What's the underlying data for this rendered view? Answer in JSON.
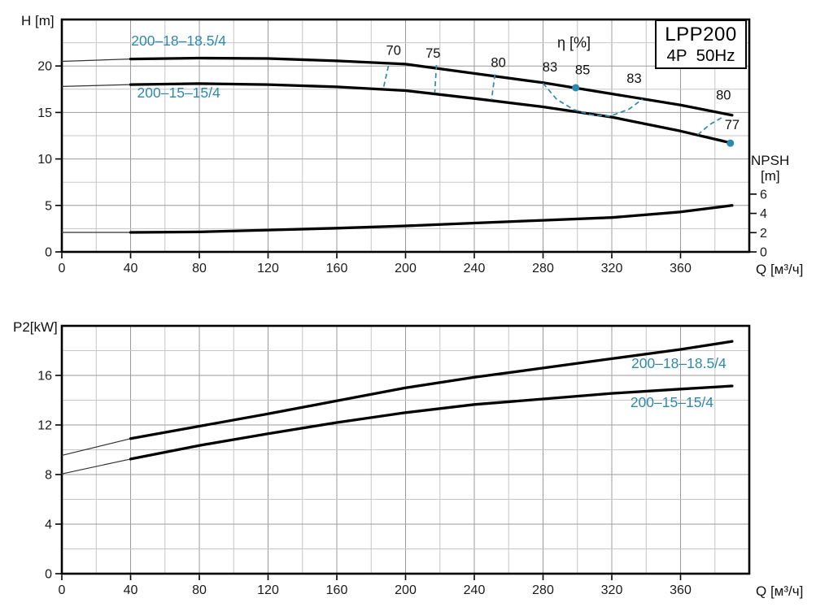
{
  "title_box": {
    "model": "LPP200",
    "spec": "4P  50Hz"
  },
  "colors": {
    "accent": "#2e8aad",
    "curve": "#000000",
    "curve_thin": "#333333",
    "grid_minor": "#c6c6c6",
    "grid_major": "#9b9b9b",
    "text": "#1a1a1a"
  },
  "chart_data": [
    {
      "type": "line",
      "id": "head-npsh-chart",
      "xlabel": "Q [м³/ч]",
      "ylabel": "H [m]",
      "y2label_lines": [
        "NPSH",
        "[m]"
      ],
      "xlim": [
        0,
        400
      ],
      "ylim": [
        0,
        25
      ],
      "x_ticks": [
        0,
        40,
        80,
        120,
        160,
        200,
        240,
        280,
        320,
        360
      ],
      "y_ticks": [
        0,
        5,
        10,
        15,
        20
      ],
      "y2_ticks": [
        0,
        2,
        4,
        6
      ],
      "grid": {
        "minor_x": 20,
        "minor_y": 2.5,
        "major_x": 40,
        "major_y": 5
      },
      "series": [
        {
          "name": "200–18–18.5/4",
          "label_pos": [
            68,
            22.2
          ],
          "thin_points": [
            [
              0,
              20.5
            ],
            [
              40,
              20.75
            ]
          ],
          "points": [
            [
              40,
              20.75
            ],
            [
              80,
              20.85
            ],
            [
              120,
              20.8
            ],
            [
              160,
              20.55
            ],
            [
              200,
              20.2
            ],
            [
              240,
              19.2
            ],
            [
              280,
              18.2
            ],
            [
              320,
              17.0
            ],
            [
              360,
              15.8
            ],
            [
              390,
              14.7
            ]
          ]
        },
        {
          "name": "200–15–15/4",
          "label_pos": [
            68,
            16.6
          ],
          "thin_points": [
            [
              0,
              17.8
            ],
            [
              40,
              18.0
            ]
          ],
          "points": [
            [
              40,
              18.0
            ],
            [
              80,
              18.1
            ],
            [
              120,
              18.0
            ],
            [
              160,
              17.75
            ],
            [
              200,
              17.35
            ],
            [
              240,
              16.5
            ],
            [
              280,
              15.6
            ],
            [
              320,
              14.5
            ],
            [
              360,
              13.0
            ],
            [
              390,
              11.7
            ]
          ]
        },
        {
          "name": "NPSH",
          "thin_points": [
            [
              0,
              2.1
            ],
            [
              40,
              2.1
            ]
          ],
          "points": [
            [
              40,
              2.1
            ],
            [
              80,
              2.15
            ],
            [
              120,
              2.35
            ],
            [
              160,
              2.55
            ],
            [
              200,
              2.8
            ],
            [
              240,
              3.1
            ],
            [
              280,
              3.4
            ],
            [
              320,
              3.7
            ],
            [
              360,
              4.3
            ],
            [
              390,
              5.0
            ]
          ]
        }
      ],
      "efficiency": {
        "title": "η [%]",
        "title_pos": [
          298,
          22.0
        ],
        "contours": [
          {
            "label": "70",
            "label_pos": [
              193,
              21.2
            ],
            "points": [
              [
                190,
                20.0
              ],
              [
                187,
                17.5
              ]
            ]
          },
          {
            "label": "75",
            "label_pos": [
              216,
              20.9
            ],
            "points": [
              [
                218,
                20.1
              ],
              [
                217,
                17.1
              ]
            ]
          },
          {
            "label": "80",
            "label_pos": [
              254,
              19.9
            ],
            "points": [
              [
                252,
                19.1
              ],
              [
                250,
                16.35
              ]
            ]
          },
          {
            "label": "83",
            "label_pos": [
              284,
              19.4
            ],
            "points": [
              [
                280,
                18.15
              ],
              [
                288,
                16.4
              ],
              [
                298,
                15.3
              ],
              [
                308,
                14.75
              ],
              [
                319,
                14.6
              ],
              [
                330,
                15.35
              ],
              [
                338,
                16.45
              ]
            ]
          },
          {
            "label": "85",
            "label_pos": [
              303,
              19.1
            ],
            "points": []
          },
          {
            "label": "83",
            "label_pos": [
              333,
              18.2
            ],
            "points": []
          },
          {
            "label": "80",
            "label_pos": [
              385,
              16.4
            ],
            "points": [
              [
                370,
                12.6
              ],
              [
                377,
                13.7
              ],
              [
                385,
                14.55
              ]
            ]
          },
          {
            "label": "77",
            "label_pos": [
              390,
              13.2
            ],
            "points": []
          }
        ],
        "best_efficiency_dots": [
          [
            299,
            17.66
          ],
          [
            389,
            11.7
          ]
        ]
      }
    },
    {
      "type": "line",
      "id": "power-chart",
      "xlabel": "Q [м³/ч]",
      "ylabel": "P2[kW]",
      "xlim": [
        0,
        400
      ],
      "ylim": [
        0,
        20
      ],
      "x_ticks": [
        0,
        40,
        80,
        120,
        160,
        200,
        240,
        280,
        320,
        360
      ],
      "y_ticks": [
        0,
        4,
        8,
        12,
        16
      ],
      "grid": {
        "minor_x": 20,
        "minor_y": 2,
        "major_x": 40,
        "major_y": 4
      },
      "series": [
        {
          "name": "200–18–18.5/4",
          "label_pos": [
            359,
            16.6
          ],
          "thin_points": [
            [
              0,
              9.55
            ],
            [
              40,
              10.9
            ]
          ],
          "points": [
            [
              40,
              10.9
            ],
            [
              80,
              11.9
            ],
            [
              120,
              12.9
            ],
            [
              160,
              13.95
            ],
            [
              200,
              15.0
            ],
            [
              240,
              15.85
            ],
            [
              280,
              16.6
            ],
            [
              320,
              17.35
            ],
            [
              360,
              18.1
            ],
            [
              390,
              18.75
            ]
          ]
        },
        {
          "name": "200–15–15/4",
          "label_pos": [
            355,
            13.45
          ],
          "thin_points": [
            [
              0,
              8.05
            ],
            [
              40,
              9.25
            ]
          ],
          "points": [
            [
              40,
              9.25
            ],
            [
              80,
              10.35
            ],
            [
              120,
              11.3
            ],
            [
              160,
              12.2
            ],
            [
              200,
              13.0
            ],
            [
              240,
              13.65
            ],
            [
              280,
              14.1
            ],
            [
              320,
              14.55
            ],
            [
              360,
              14.9
            ],
            [
              390,
              15.15
            ]
          ]
        }
      ]
    }
  ]
}
